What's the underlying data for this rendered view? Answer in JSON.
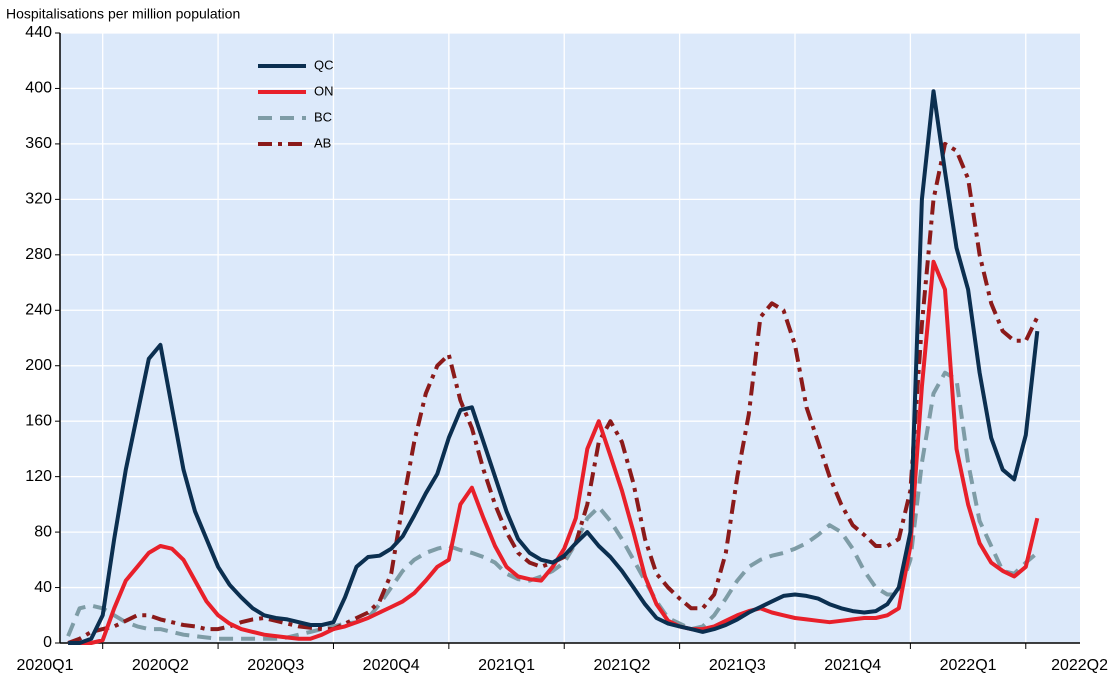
{
  "chart_data": {
    "type": "line",
    "ylabel": "Hospitalisations per million population",
    "x": [
      -0.3,
      -0.2,
      -0.1,
      0.0,
      0.1,
      0.2,
      0.3,
      0.4,
      0.5,
      0.6,
      0.7,
      0.8,
      0.9,
      1.0,
      1.1,
      1.2,
      1.3,
      1.4,
      1.5,
      1.6,
      1.7,
      1.8,
      1.9,
      2.0,
      2.1,
      2.2,
      2.3,
      2.4,
      2.5,
      2.6,
      2.7,
      2.8,
      2.9,
      3.0,
      3.1,
      3.2,
      3.3,
      3.4,
      3.5,
      3.6,
      3.7,
      3.8,
      3.9,
      4.0,
      4.1,
      4.2,
      4.3,
      4.4,
      4.5,
      4.6,
      4.7,
      4.8,
      4.9,
      5.0,
      5.1,
      5.2,
      5.3,
      5.4,
      5.5,
      5.6,
      5.7,
      5.8,
      5.9,
      6.0,
      6.1,
      6.2,
      6.3,
      6.4,
      6.5,
      6.6,
      6.7,
      6.8,
      6.9,
      7.0,
      7.1,
      7.2,
      7.3,
      7.4,
      7.5,
      7.6,
      7.7,
      7.8,
      7.9,
      8.0,
      8.1
    ],
    "series": [
      {
        "name": "QC",
        "color": "#0b2f50",
        "dash": "solid",
        "values": [
          0,
          0,
          3,
          20,
          75,
          125,
          165,
          205,
          215,
          170,
          125,
          95,
          75,
          55,
          42,
          33,
          25,
          20,
          18,
          17,
          15,
          13,
          13,
          15,
          33,
          55,
          62,
          63,
          68,
          77,
          92,
          108,
          122,
          148,
          168,
          170,
          145,
          120,
          95,
          75,
          65,
          60,
          58,
          63,
          72,
          80,
          70,
          62,
          52,
          40,
          28,
          18,
          14,
          12,
          10,
          8,
          10,
          13,
          17,
          22,
          26,
          30,
          34,
          35,
          34,
          32,
          28,
          25,
          23,
          22,
          23,
          28,
          40,
          80,
          320,
          398,
          340,
          285,
          255,
          195,
          148,
          125,
          118,
          150,
          225
        ]
      },
      {
        "name": "ON",
        "color": "#e8202a",
        "dash": "solid",
        "values": [
          0,
          0,
          0,
          2,
          25,
          45,
          55,
          65,
          70,
          68,
          60,
          45,
          30,
          20,
          14,
          10,
          8,
          6,
          5,
          4,
          3,
          3,
          6,
          10,
          12,
          15,
          18,
          22,
          26,
          30,
          36,
          45,
          55,
          60,
          100,
          112,
          90,
          70,
          55,
          48,
          46,
          45,
          55,
          68,
          90,
          140,
          160,
          135,
          110,
          80,
          48,
          28,
          16,
          12,
          10,
          10,
          12,
          16,
          20,
          23,
          25,
          22,
          20,
          18,
          17,
          16,
          15,
          16,
          17,
          18,
          18,
          20,
          25,
          70,
          185,
          275,
          255,
          140,
          100,
          72,
          58,
          52,
          48,
          55,
          90
        ]
      },
      {
        "name": "BC",
        "color": "#7e9ca6",
        "dash": "dashed",
        "values": [
          5,
          25,
          27,
          25,
          20,
          15,
          12,
          10,
          10,
          8,
          6,
          5,
          4,
          3,
          3,
          3,
          3,
          3,
          3,
          4,
          6,
          8,
          10,
          12,
          14,
          15,
          18,
          28,
          40,
          52,
          60,
          65,
          68,
          70,
          67,
          65,
          62,
          58,
          50,
          46,
          45,
          48,
          52,
          58,
          72,
          90,
          98,
          88,
          75,
          60,
          45,
          30,
          18,
          14,
          10,
          12,
          20,
          32,
          45,
          55,
          60,
          63,
          65,
          68,
          72,
          78,
          85,
          80,
          68,
          52,
          40,
          35,
          35,
          60,
          130,
          180,
          195,
          190,
          130,
          88,
          70,
          52,
          50,
          58,
          65
        ]
      },
      {
        "name": "AB",
        "color": "#8b1a1a",
        "dash": "dashdot",
        "values": [
          0,
          3,
          8,
          10,
          12,
          16,
          20,
          20,
          17,
          15,
          13,
          12,
          10,
          10,
          12,
          15,
          17,
          18,
          16,
          14,
          12,
          11,
          10,
          10,
          14,
          18,
          22,
          30,
          50,
          100,
          145,
          180,
          200,
          208,
          175,
          155,
          125,
          100,
          80,
          65,
          58,
          55,
          58,
          62,
          72,
          100,
          145,
          160,
          145,
          115,
          75,
          50,
          40,
          32,
          25,
          25,
          35,
          65,
          120,
          165,
          235,
          245,
          240,
          215,
          170,
          145,
          120,
          100,
          85,
          78,
          70,
          70,
          75,
          110,
          230,
          320,
          360,
          355,
          335,
          280,
          245,
          225,
          218,
          218,
          235
        ]
      }
    ],
    "xlim": [
      -0.37,
      8.47
    ],
    "xticks": [
      {
        "value": -0.5,
        "label": "2020Q1"
      },
      {
        "value": 0.5,
        "label": "2020Q2"
      },
      {
        "value": 1.5,
        "label": "2020Q3"
      },
      {
        "value": 2.5,
        "label": "2020Q4"
      },
      {
        "value": 3.5,
        "label": "2021Q1"
      },
      {
        "value": 4.5,
        "label": "2021Q2"
      },
      {
        "value": 5.5,
        "label": "2021Q3"
      },
      {
        "value": 6.5,
        "label": "2021Q4"
      },
      {
        "value": 7.5,
        "label": "2022Q1"
      },
      {
        "value": 8.5,
        "label": "2022Q2"
      }
    ],
    "ylim": [
      0,
      440
    ],
    "yticks": [
      0,
      40,
      80,
      120,
      160,
      200,
      240,
      280,
      320,
      360,
      400,
      440
    ],
    "grid": true,
    "legend": "upper-left"
  }
}
